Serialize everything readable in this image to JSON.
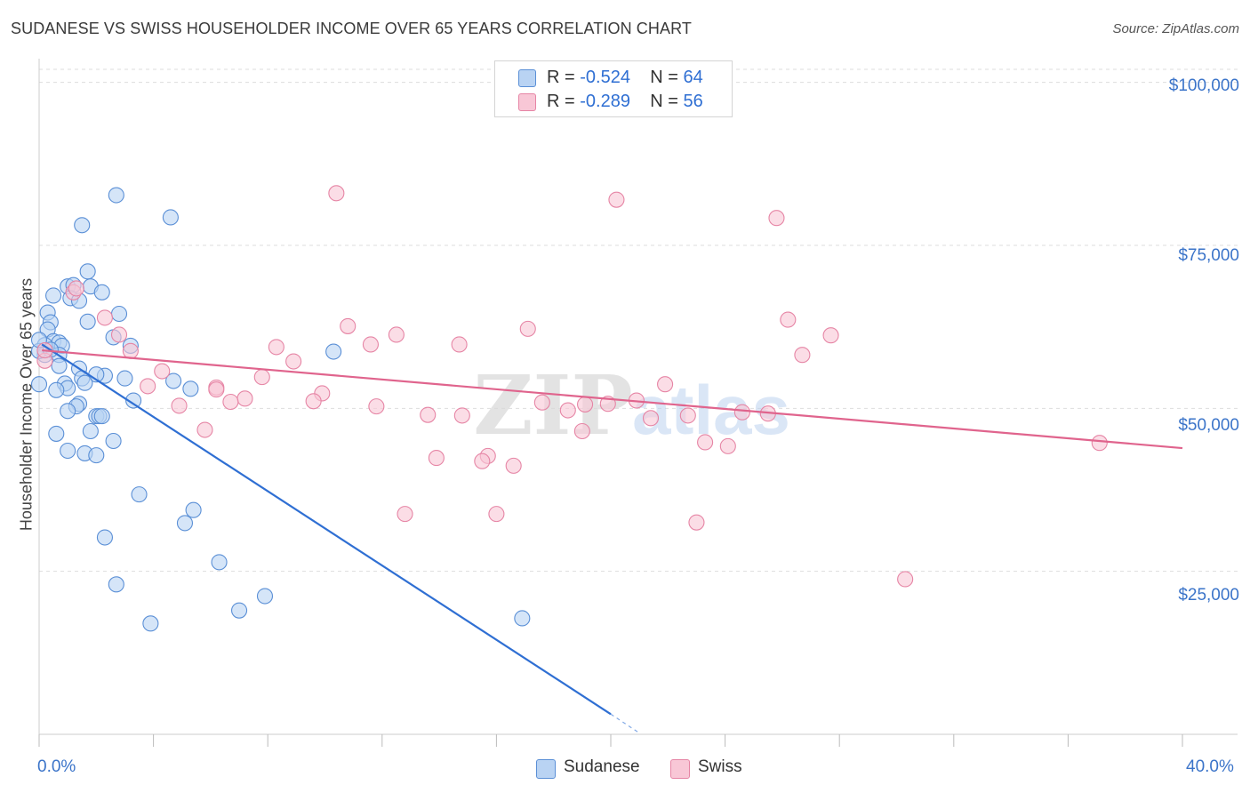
{
  "header": {
    "title": "SUDANESE VS SWISS HOUSEHOLDER INCOME OVER 65 YEARS CORRELATION CHART",
    "source": "Source: ZipAtlas.com"
  },
  "legend": {
    "rows": [
      {
        "r_label": "R = ",
        "r_value": "-0.524",
        "n_label": "N = ",
        "n_value": "64"
      },
      {
        "r_label": "R = ",
        "r_value": "-0.289",
        "n_label": "N = ",
        "n_value": "56"
      }
    ],
    "bottom": [
      "Sudanese",
      "Swiss"
    ]
  },
  "watermark": {
    "zip": "ZIP",
    "atlas": "atlas"
  },
  "colors": {
    "sudanese_fill": "#b9d3f3",
    "sudanese_stroke": "#5a8fd6",
    "sudanese_line": "#2f6fd3",
    "swiss_fill": "#f8c7d6",
    "swiss_stroke": "#e685a5",
    "swiss_line": "#e0648d",
    "tick_text": "#3b74c9",
    "grid": "#dddddd"
  },
  "chart_data": {
    "type": "scatter",
    "title": "SUDANESE VS SWISS HOUSEHOLDER INCOME OVER 65 YEARS CORRELATION CHART",
    "xlabel": "",
    "ylabel": "Householder Income Over 65 years",
    "xlim": [
      0,
      40
    ],
    "ylim": [
      0,
      102000
    ],
    "x_tick_labels": [
      "0.0%",
      "40.0%"
    ],
    "y_ticks": [
      25000,
      50000,
      75000,
      100000
    ],
    "y_tick_labels": [
      "$25,000",
      "$50,000",
      "$75,000",
      "$100,000"
    ],
    "grid": true,
    "legend_position": "top-center",
    "series": [
      {
        "name": "Sudanese",
        "r": -0.524,
        "n": 64,
        "trend": {
          "x": [
            0.1,
            20.0
          ],
          "y": [
            59800,
            3100
          ],
          "dashed_extension_to": [
            21.0,
            200
          ]
        },
        "points": [
          [
            2.7,
            82700
          ],
          [
            4.6,
            79300
          ],
          [
            1.5,
            78100
          ],
          [
            1.7,
            71000
          ],
          [
            1.0,
            68700
          ],
          [
            0.5,
            67300
          ],
          [
            1.8,
            68700
          ],
          [
            2.2,
            67800
          ],
          [
            1.2,
            68900
          ],
          [
            1.1,
            66900
          ],
          [
            1.4,
            66500
          ],
          [
            0.3,
            64700
          ],
          [
            2.8,
            64500
          ],
          [
            0.4,
            63200
          ],
          [
            1.7,
            63300
          ],
          [
            0.3,
            62100
          ],
          [
            2.6,
            60900
          ],
          [
            0.5,
            60300
          ],
          [
            0.7,
            60100
          ],
          [
            0.2,
            59700
          ],
          [
            0.8,
            59600
          ],
          [
            3.2,
            59600
          ],
          [
            10.3,
            58700
          ],
          [
            0.7,
            58200
          ],
          [
            0.2,
            58200
          ],
          [
            1.4,
            56100
          ],
          [
            0.7,
            56500
          ],
          [
            1.5,
            54600
          ],
          [
            2.3,
            55000
          ],
          [
            2.0,
            55200
          ],
          [
            3.0,
            54600
          ],
          [
            4.7,
            54200
          ],
          [
            1.6,
            53900
          ],
          [
            0.9,
            53800
          ],
          [
            0.0,
            53700
          ],
          [
            1.0,
            53100
          ],
          [
            5.3,
            53000
          ],
          [
            0.6,
            52800
          ],
          [
            3.3,
            51200
          ],
          [
            1.4,
            50700
          ],
          [
            1.3,
            50300
          ],
          [
            1.0,
            49600
          ],
          [
            2.0,
            48800
          ],
          [
            2.1,
            48800
          ],
          [
            2.2,
            48800
          ],
          [
            1.8,
            46500
          ],
          [
            0.6,
            46100
          ],
          [
            2.6,
            45000
          ],
          [
            1.0,
            43500
          ],
          [
            1.6,
            43100
          ],
          [
            2.0,
            42800
          ],
          [
            3.5,
            36800
          ],
          [
            5.4,
            34400
          ],
          [
            5.1,
            32400
          ],
          [
            2.3,
            30200
          ],
          [
            6.3,
            26400
          ],
          [
            2.7,
            23000
          ],
          [
            7.9,
            21200
          ],
          [
            7.0,
            19000
          ],
          [
            3.9,
            17000
          ],
          [
            16.9,
            17800
          ],
          [
            0.0,
            58800
          ],
          [
            0.0,
            60500
          ],
          [
            0.4,
            59000
          ]
        ]
      },
      {
        "name": "Swiss",
        "r": -0.289,
        "n": 56,
        "trend": {
          "x": [
            0.1,
            40.0
          ],
          "y": [
            58900,
            43900
          ]
        },
        "points": [
          [
            10.4,
            83000
          ],
          [
            20.2,
            82000
          ],
          [
            25.8,
            79200
          ],
          [
            1.2,
            67800
          ],
          [
            1.3,
            68400
          ],
          [
            2.3,
            63900
          ],
          [
            26.2,
            63600
          ],
          [
            10.8,
            62600
          ],
          [
            17.1,
            62200
          ],
          [
            2.8,
            61300
          ],
          [
            12.5,
            61300
          ],
          [
            27.7,
            61200
          ],
          [
            11.6,
            59800
          ],
          [
            14.7,
            59800
          ],
          [
            8.3,
            59400
          ],
          [
            3.2,
            58800
          ],
          [
            26.7,
            58200
          ],
          [
            0.2,
            57300
          ],
          [
            8.9,
            57200
          ],
          [
            4.3,
            55700
          ],
          [
            7.8,
            54800
          ],
          [
            21.9,
            53700
          ],
          [
            3.8,
            53400
          ],
          [
            6.2,
            53200
          ],
          [
            6.2,
            52900
          ],
          [
            9.9,
            52300
          ],
          [
            7.2,
            51500
          ],
          [
            6.7,
            51000
          ],
          [
            9.6,
            51100
          ],
          [
            20.9,
            51200
          ],
          [
            17.6,
            50900
          ],
          [
            19.1,
            50600
          ],
          [
            19.9,
            50700
          ],
          [
            11.8,
            50300
          ],
          [
            4.9,
            50400
          ],
          [
            18.5,
            49700
          ],
          [
            24.6,
            49400
          ],
          [
            25.5,
            49200
          ],
          [
            13.6,
            49000
          ],
          [
            14.8,
            48900
          ],
          [
            22.7,
            48900
          ],
          [
            21.4,
            48500
          ],
          [
            19.0,
            46500
          ],
          [
            5.8,
            46700
          ],
          [
            23.3,
            44800
          ],
          [
            24.1,
            44200
          ],
          [
            37.1,
            44700
          ],
          [
            15.7,
            42700
          ],
          [
            13.9,
            42400
          ],
          [
            15.5,
            41900
          ],
          [
            16.6,
            41200
          ],
          [
            12.8,
            33800
          ],
          [
            16.0,
            33800
          ],
          [
            23.0,
            32500
          ],
          [
            30.3,
            23800
          ],
          [
            0.2,
            58900
          ]
        ]
      }
    ]
  }
}
